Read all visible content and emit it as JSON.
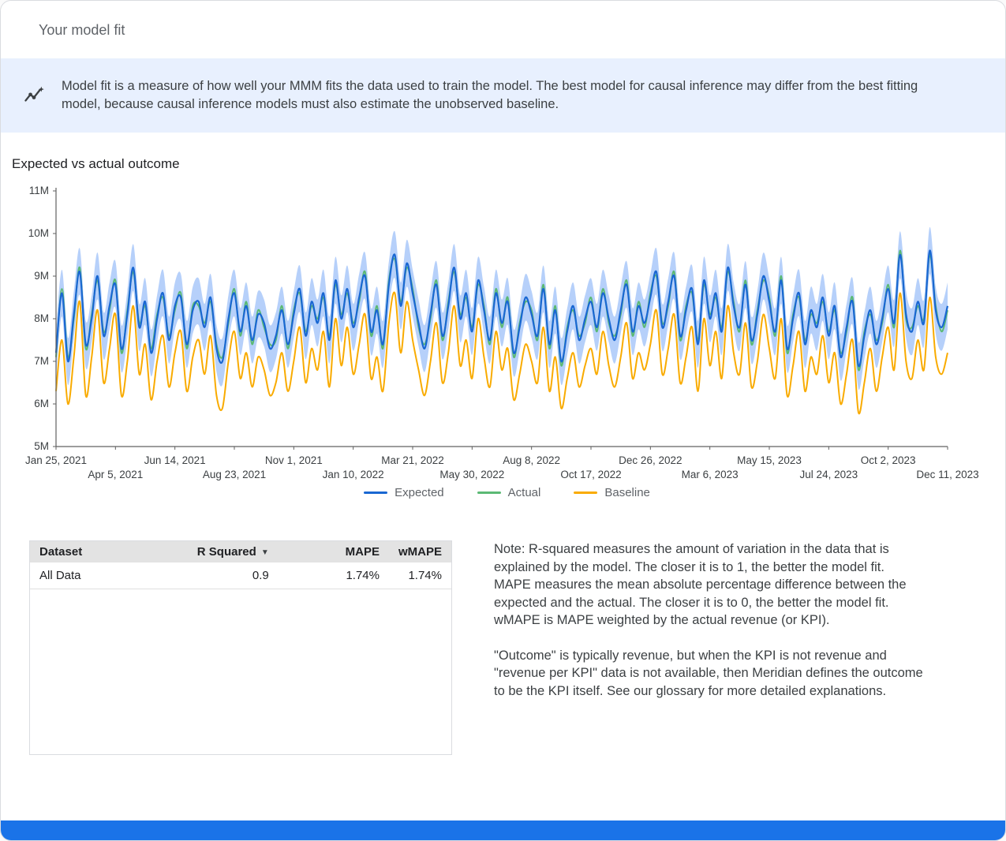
{
  "page": {
    "title": "Your model fit"
  },
  "banner": {
    "icon": "insights-icon",
    "background_color": "#e8f0fe",
    "text": "Model fit is a measure of how well your MMM fits the data used to train the model. The best model for causal inference may differ from the best fitting model, because causal inference models must also estimate the unobserved baseline."
  },
  "chart_section": {
    "title": "Expected vs actual outcome"
  },
  "legend": {
    "position": "bottom",
    "items": [
      {
        "label": "Expected",
        "color": "#1967D2"
      },
      {
        "label": "Actual",
        "color": "#5BB974"
      },
      {
        "label": "Baseline",
        "color": "#F9AB00"
      }
    ]
  },
  "table": {
    "headers": [
      "Dataset",
      "R Squared",
      "MAPE",
      "wMAPE"
    ],
    "sorted_column": "R Squared",
    "sort_icon": "arrow-drop-down",
    "rows": [
      [
        "All Data",
        "0.9",
        "1.74%",
        "1.74%"
      ]
    ]
  },
  "note": {
    "paragraph1": "Note: R-squared measures the amount of variation in the data that is explained by the model. The closer it is to 1, the better the model fit. MAPE measures the mean absolute percentage difference between the expected and the actual. The closer it is to 0, the better the model fit. wMAPE is MAPE weighted by the actual revenue (or KPI).",
    "paragraph2": "\"Outcome\" is typically revenue, but when the KPI is not revenue and \"revenue per KPI\" data is not available, then Meridian defines the outcome to be the KPI itself. See our glossary for more detailed explanations."
  },
  "chart_data": {
    "type": "line",
    "title": "Expected vs actual outcome",
    "xlabel": "",
    "ylabel": "",
    "unit": "millions",
    "frequency": "weekly",
    "ylim": [
      5,
      11
    ],
    "y_ticks": [
      "5M",
      "6M",
      "7M",
      "8M",
      "9M",
      "10M",
      "11M"
    ],
    "x_ticks": [
      "Jan 25, 2021",
      "Apr 5, 2021",
      "Jun 14, 2021",
      "Aug 23, 2021",
      "Nov 1, 2021",
      "Jan 10, 2022",
      "Mar 21, 2022",
      "May 30, 2022",
      "Aug 8, 2022",
      "Oct 17, 2022",
      "Dec 26, 2022",
      "Mar 6, 2023",
      "May 15, 2023",
      "Jul 24, 2023",
      "Oct 2, 2023",
      "Dec 11, 2023"
    ],
    "x_tick_positions": [
      0,
      10,
      20,
      30,
      40,
      50,
      60,
      70,
      80,
      90,
      100,
      110,
      120,
      130,
      140,
      150
    ],
    "grid": false,
    "band": {
      "name": "Expected credible interval",
      "color": "#AECBFA",
      "halfwidth": 0.55
    },
    "series": [
      {
        "name": "Expected",
        "color": "#1967D2",
        "values": [
          7.2,
          8.6,
          7.0,
          8.1,
          9.1,
          7.4,
          8.0,
          9.0,
          7.6,
          8.3,
          8.8,
          7.3,
          8.1,
          9.2,
          7.8,
          8.4,
          7.2,
          8.0,
          8.6,
          7.5,
          8.3,
          8.5,
          7.4,
          8.2,
          8.4,
          7.8,
          8.5,
          7.3,
          7.0,
          8.0,
          8.6,
          7.7,
          8.3,
          7.5,
          8.1,
          7.9,
          7.3,
          7.6,
          8.2,
          7.4,
          8.1,
          8.7,
          7.6,
          8.4,
          7.9,
          8.6,
          7.5,
          8.9,
          8.0,
          8.7,
          7.8,
          8.5,
          9.0,
          7.7,
          8.2,
          7.4,
          8.8,
          9.5,
          8.3,
          9.3,
          8.6,
          7.9,
          7.3,
          8.1,
          8.8,
          7.6,
          8.3,
          9.2,
          8.0,
          8.6,
          7.7,
          8.9,
          8.2,
          7.5,
          8.6,
          7.9,
          8.4,
          7.2,
          7.8,
          8.5,
          8.1,
          7.6,
          8.7,
          7.4,
          8.2,
          7.0,
          7.7,
          8.3,
          7.5,
          8.0,
          8.4,
          7.8,
          8.6,
          8.0,
          7.5,
          8.2,
          8.8,
          7.7,
          8.3,
          7.9,
          8.5,
          9.1,
          7.8,
          8.4,
          9.0,
          7.6,
          8.2,
          8.7,
          7.4,
          8.9,
          8.0,
          8.6,
          7.7,
          9.2,
          8.3,
          7.8,
          8.8,
          7.5,
          8.1,
          9.0,
          8.4,
          7.7,
          8.9,
          7.3,
          8.0,
          8.6,
          7.4,
          8.2,
          7.8,
          8.5,
          7.6,
          8.3,
          7.1,
          7.8,
          8.4,
          6.9,
          7.6,
          8.2,
          7.4,
          8.0,
          8.7,
          7.9,
          9.5,
          8.1,
          7.7,
          8.4,
          7.9,
          9.6,
          8.2,
          7.8,
          8.3
        ]
      },
      {
        "name": "Actual",
        "color": "#5BB974",
        "values": [
          7.1,
          8.7,
          7.1,
          8.0,
          9.2,
          7.3,
          8.1,
          8.9,
          7.7,
          8.2,
          8.9,
          7.2,
          8.2,
          9.1,
          7.9,
          8.3,
          7.3,
          8.1,
          8.5,
          7.6,
          8.2,
          8.6,
          7.3,
          8.3,
          8.3,
          7.9,
          8.4,
          7.4,
          7.1,
          7.9,
          8.7,
          7.6,
          8.4,
          7.4,
          8.2,
          7.8,
          7.4,
          7.5,
          8.3,
          7.3,
          8.2,
          8.6,
          7.7,
          8.3,
          8.0,
          8.5,
          7.6,
          8.8,
          8.1,
          8.6,
          7.9,
          8.4,
          9.1,
          7.6,
          8.3,
          7.3,
          8.9,
          9.4,
          8.4,
          9.2,
          8.7,
          7.8,
          7.4,
          8.0,
          8.9,
          7.5,
          8.4,
          9.1,
          8.1,
          8.5,
          7.8,
          8.8,
          8.3,
          7.4,
          8.7,
          7.8,
          8.5,
          7.1,
          7.9,
          8.4,
          8.2,
          7.5,
          8.8,
          7.3,
          8.3,
          6.9,
          7.8,
          8.2,
          7.6,
          7.9,
          8.5,
          7.7,
          8.7,
          7.9,
          7.6,
          8.1,
          8.9,
          7.6,
          8.4,
          7.8,
          8.6,
          9.0,
          7.9,
          8.3,
          9.1,
          7.5,
          8.3,
          8.6,
          7.5,
          8.8,
          8.1,
          8.5,
          7.8,
          9.1,
          8.4,
          7.7,
          8.9,
          7.4,
          8.2,
          8.9,
          8.5,
          7.6,
          9.0,
          7.2,
          8.1,
          8.5,
          7.5,
          8.1,
          7.9,
          8.4,
          7.7,
          8.2,
          7.2,
          7.7,
          8.5,
          6.8,
          7.7,
          8.1,
          7.5,
          7.9,
          8.8,
          7.8,
          9.6,
          8.0,
          7.8,
          8.3,
          8.0,
          9.5,
          8.3,
          7.7,
          8.2
        ]
      },
      {
        "name": "Baseline",
        "color": "#F9AB00",
        "values": [
          6.3,
          7.5,
          6.0,
          7.1,
          8.4,
          6.2,
          7.1,
          8.2,
          6.5,
          7.3,
          8.1,
          6.2,
          7.0,
          8.3,
          6.7,
          7.4,
          6.1,
          7.0,
          7.6,
          6.4,
          7.2,
          7.7,
          6.3,
          7.1,
          7.5,
          6.7,
          7.6,
          6.2,
          5.9,
          7.0,
          7.7,
          6.6,
          7.2,
          6.4,
          7.1,
          6.8,
          6.2,
          6.5,
          7.2,
          6.3,
          7.0,
          7.8,
          6.5,
          7.3,
          6.8,
          7.7,
          6.4,
          8.0,
          6.9,
          7.8,
          6.7,
          7.4,
          8.1,
          6.6,
          7.1,
          6.3,
          7.9,
          8.6,
          7.2,
          8.4,
          7.5,
          6.8,
          6.2,
          7.0,
          7.9,
          6.5,
          7.2,
          8.3,
          6.9,
          7.5,
          6.6,
          8.0,
          7.1,
          6.4,
          7.7,
          6.8,
          7.3,
          6.1,
          6.7,
          7.4,
          7.0,
          6.5,
          7.8,
          6.3,
          7.1,
          5.9,
          6.6,
          7.2,
          6.4,
          6.9,
          7.3,
          6.7,
          7.7,
          6.9,
          6.4,
          7.1,
          7.9,
          6.6,
          7.2,
          6.8,
          7.4,
          8.2,
          6.7,
          7.3,
          8.1,
          6.5,
          7.1,
          7.8,
          6.3,
          8.0,
          6.9,
          7.7,
          6.6,
          8.3,
          7.2,
          6.7,
          7.9,
          6.4,
          7.0,
          8.1,
          7.3,
          6.6,
          8.0,
          6.2,
          6.9,
          7.7,
          6.3,
          7.1,
          6.7,
          7.6,
          6.5,
          7.2,
          6.0,
          6.7,
          7.5,
          5.8,
          6.5,
          7.3,
          6.3,
          7.1,
          7.8,
          6.8,
          8.6,
          7.0,
          6.6,
          7.5,
          6.8,
          8.5,
          7.1,
          6.7,
          7.2
        ]
      }
    ]
  }
}
